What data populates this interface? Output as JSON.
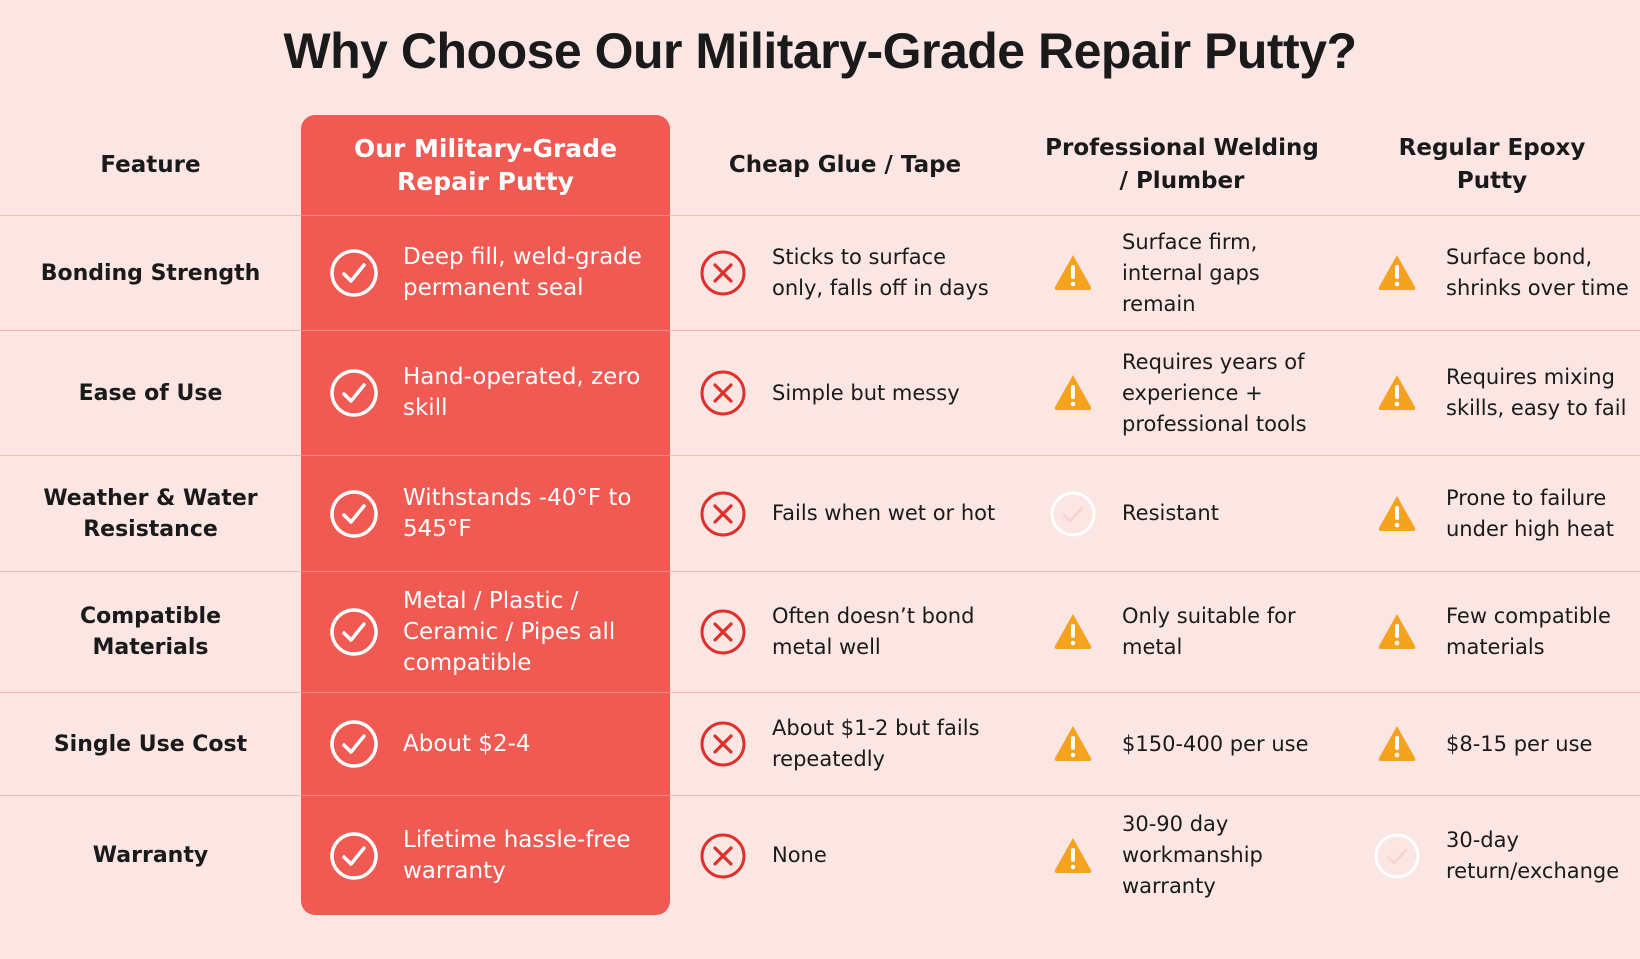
{
  "header": {
    "title": "Why Choose Our Military-Grade Repair Putty?"
  },
  "table": {
    "columns": [
      "Feature",
      "Our Military-Grade Repair Putty",
      "Cheap Glue / Tape",
      "Professional Welding / Plumber",
      "Regular Epoxy Putty"
    ],
    "rows": [
      {
        "feature": "Bonding Strength",
        "cells": [
          {
            "icon": "check",
            "text": "Deep fill, weld-grade permanent seal"
          },
          {
            "icon": "cross",
            "text": "Sticks to surface only, falls off in days"
          },
          {
            "icon": "warning",
            "text": "Surface firm, internal gaps remain"
          },
          {
            "icon": "warning",
            "text": "Surface bond, shrinks over time"
          }
        ]
      },
      {
        "feature": "Ease of Use",
        "cells": [
          {
            "icon": "check",
            "text": "Hand-operated, zero skill"
          },
          {
            "icon": "cross",
            "text": "Simple but messy"
          },
          {
            "icon": "warning",
            "text": "Requires years of experience + professional tools"
          },
          {
            "icon": "warning",
            "text": "Requires mixing skills, easy to fail"
          }
        ]
      },
      {
        "feature": "Weather & Water Resistance",
        "cells": [
          {
            "icon": "check",
            "text": "Withstands -40°F to 545°F"
          },
          {
            "icon": "cross",
            "text": "Fails when wet or hot"
          },
          {
            "icon": "light-check",
            "text": "Resistant"
          },
          {
            "icon": "warning",
            "text": "Prone to failure under high heat"
          }
        ]
      },
      {
        "feature": "Compatible Materials",
        "cells": [
          {
            "icon": "check",
            "text": "Metal / Plastic / Ceramic / Pipes all compatible"
          },
          {
            "icon": "cross",
            "text": "Often doesn’t bond metal well"
          },
          {
            "icon": "warning",
            "text": "Only suitable for metal"
          },
          {
            "icon": "warning",
            "text": "Few compatible materials"
          }
        ]
      },
      {
        "feature": "Single Use Cost",
        "cells": [
          {
            "icon": "check",
            "text": "About $2-4"
          },
          {
            "icon": "cross",
            "text": "About $1-2 but fails repeatedly"
          },
          {
            "icon": "warning",
            "text": "$150-400 per use"
          },
          {
            "icon": "warning",
            "text": "$8-15 per use"
          }
        ]
      },
      {
        "feature": "Warranty",
        "cells": [
          {
            "icon": "check",
            "text": "Lifetime hassle-free warranty"
          },
          {
            "icon": "cross",
            "text": "None"
          },
          {
            "icon": "warning",
            "text": "30-90 day workmanship warranty"
          },
          {
            "icon": "light-check",
            "text": "30-day return/exchange"
          }
        ]
      }
    ]
  }
}
